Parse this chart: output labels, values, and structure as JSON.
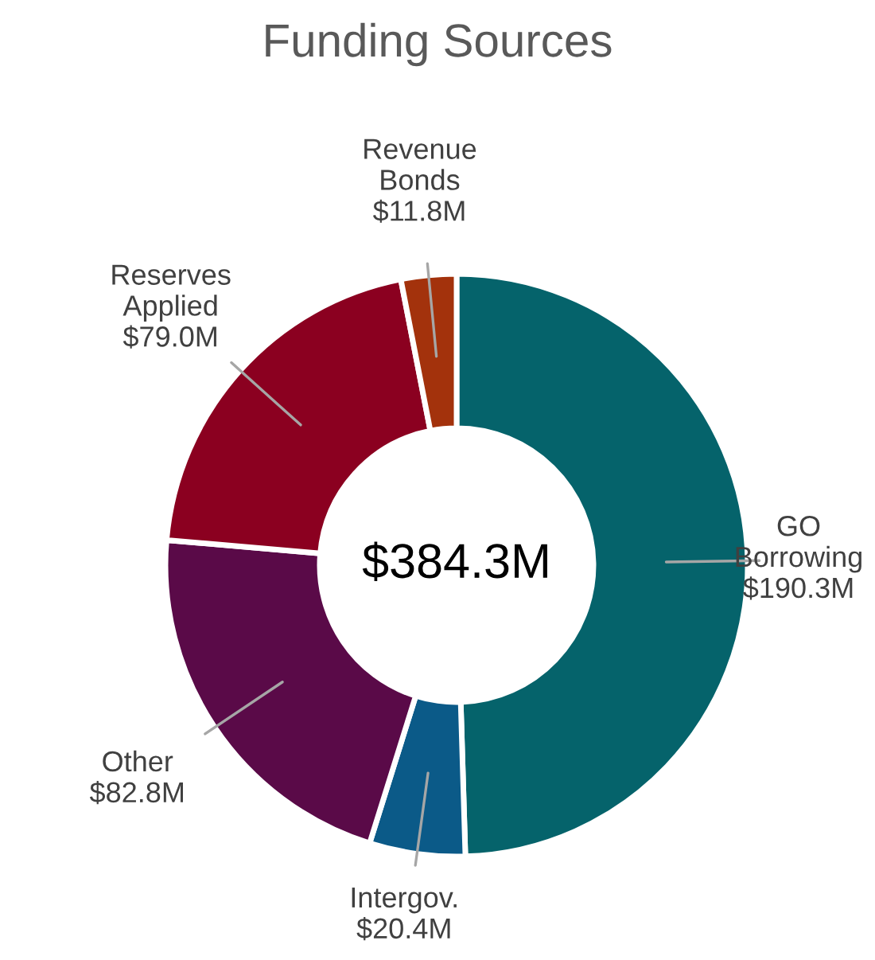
{
  "chart_data": {
    "type": "donut",
    "title": "Funding Sources",
    "categories": [
      "GO Borrowing",
      "Intergov.",
      "Other",
      "Reserves Applied",
      "Revenue Bonds"
    ],
    "values": [
      190.3,
      20.4,
      82.8,
      79.0,
      11.8
    ],
    "value_labels": [
      "$190.3M",
      "$20.4M",
      "$82.8M",
      "$79.0M",
      "$11.8M"
    ],
    "colors": [
      "#05636b",
      "#0b5a88",
      "#5a0a48",
      "#8b0020",
      "#a3320c"
    ],
    "annotations": [
      "$384.3M"
    ],
    "legend": false
  }
}
